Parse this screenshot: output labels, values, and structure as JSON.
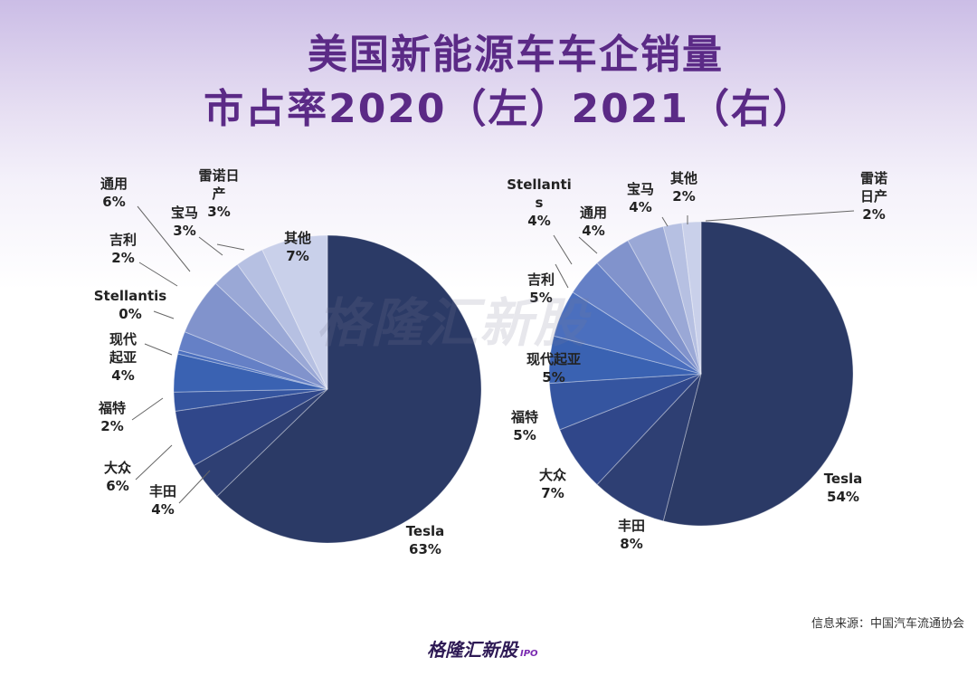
{
  "title": {
    "line1": "美国新能源车车企销量",
    "line2": "市占率2020（左）2021（右）"
  },
  "source": "信息来源：中国汽车流通协会",
  "footer_logo": {
    "text": "格隆汇新股",
    "suffix": "IPO"
  },
  "watermark": "格隆汇新股",
  "colors": {
    "tesla": "#2b3a66",
    "shades": [
      "#2e3f73",
      "#30478a",
      "#3555a0",
      "#3a62b2",
      "#4b6fbe",
      "#6580c6",
      "#8193cc",
      "#9aa8d6",
      "#b6c0e2",
      "#c9d0ea"
    ]
  },
  "chart_data": [
    {
      "type": "pie",
      "title": "2020",
      "slices": [
        {
          "name": "Tesla",
          "label": "63%",
          "value": 63
        },
        {
          "name": "丰田",
          "label": "4%",
          "value": 4
        },
        {
          "name": "大众",
          "label": "6%",
          "value": 6
        },
        {
          "name": "福特",
          "label": "2%",
          "value": 2
        },
        {
          "name": "现代起亚",
          "label": "4%",
          "value": 4
        },
        {
          "name": "Stellantis",
          "label": "0%",
          "value": 0.4
        },
        {
          "name": "吉利",
          "label": "2%",
          "value": 2
        },
        {
          "name": "通用",
          "label": "6%",
          "value": 6
        },
        {
          "name": "宝马",
          "label": "3%",
          "value": 3
        },
        {
          "name": "雷诺日产",
          "label": "3%",
          "value": 3
        },
        {
          "name": "其他",
          "label": "7%",
          "value": 7
        }
      ]
    },
    {
      "type": "pie",
      "title": "2021",
      "slices": [
        {
          "name": "Tesla",
          "label": "54%",
          "value": 54
        },
        {
          "name": "丰田",
          "label": "8%",
          "value": 8
        },
        {
          "name": "大众",
          "label": "7%",
          "value": 7
        },
        {
          "name": "福特",
          "label": "5%",
          "value": 5
        },
        {
          "name": "现代起亚",
          "label": "5%",
          "value": 5
        },
        {
          "name": "吉利",
          "label": "5%",
          "value": 5
        },
        {
          "name": "Stellantis",
          "label": "4%",
          "value": 4
        },
        {
          "name": "通用",
          "label": "4%",
          "value": 4
        },
        {
          "name": "宝马",
          "label": "4%",
          "value": 4
        },
        {
          "name": "其他",
          "label": "2%",
          "value": 2
        },
        {
          "name": "雷诺日产",
          "label": "2%",
          "value": 2
        }
      ]
    }
  ]
}
